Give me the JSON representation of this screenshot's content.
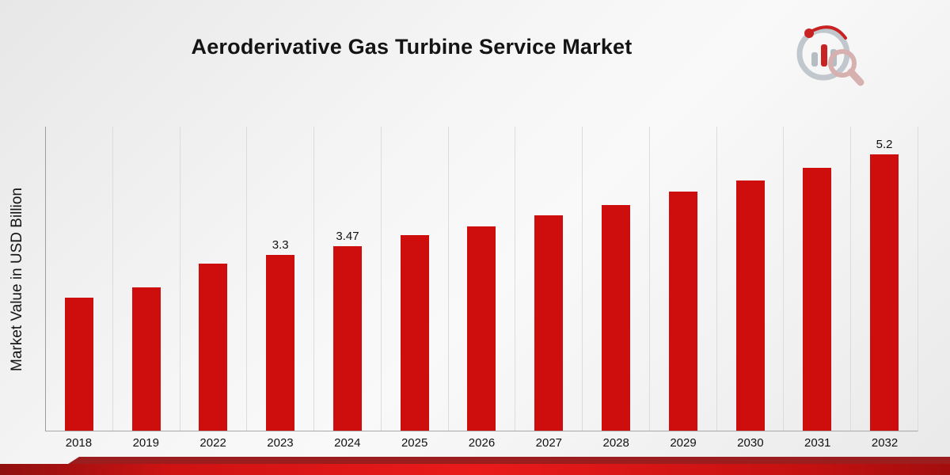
{
  "title": "Aeroderivative Gas Turbine Service Market",
  "y_axis_label": "Market Value in USD Billion",
  "logo": {
    "name": "market-research-chart-logo"
  },
  "colors": {
    "bar": "#ce0d0d",
    "ribbon_dark": "#9b1d1d",
    "ribbon_main": "#cf1010",
    "gridline": "#dcdcdc"
  },
  "chart_data": {
    "type": "bar",
    "title": "Aeroderivative Gas Turbine Service Market",
    "xlabel": "",
    "ylabel": "Market Value in USD Billion",
    "categories": [
      "2018",
      "2019",
      "2022",
      "2023",
      "2024",
      "2025",
      "2026",
      "2027",
      "2028",
      "2029",
      "2030",
      "2031",
      "2032"
    ],
    "values": [
      2.5,
      2.7,
      3.15,
      3.3,
      3.47,
      3.68,
      3.85,
      4.05,
      4.25,
      4.5,
      4.7,
      4.95,
      5.2
    ],
    "data_labels": [
      "",
      "",
      "",
      "3.3",
      "3.47",
      "",
      "",
      "",
      "",
      "",
      "",
      "",
      "5.2"
    ],
    "ylim": [
      0,
      5.72
    ],
    "bar_color": "#ce0d0d",
    "grid": "vertical-only",
    "legend": "none",
    "unit": "USD Billion"
  }
}
